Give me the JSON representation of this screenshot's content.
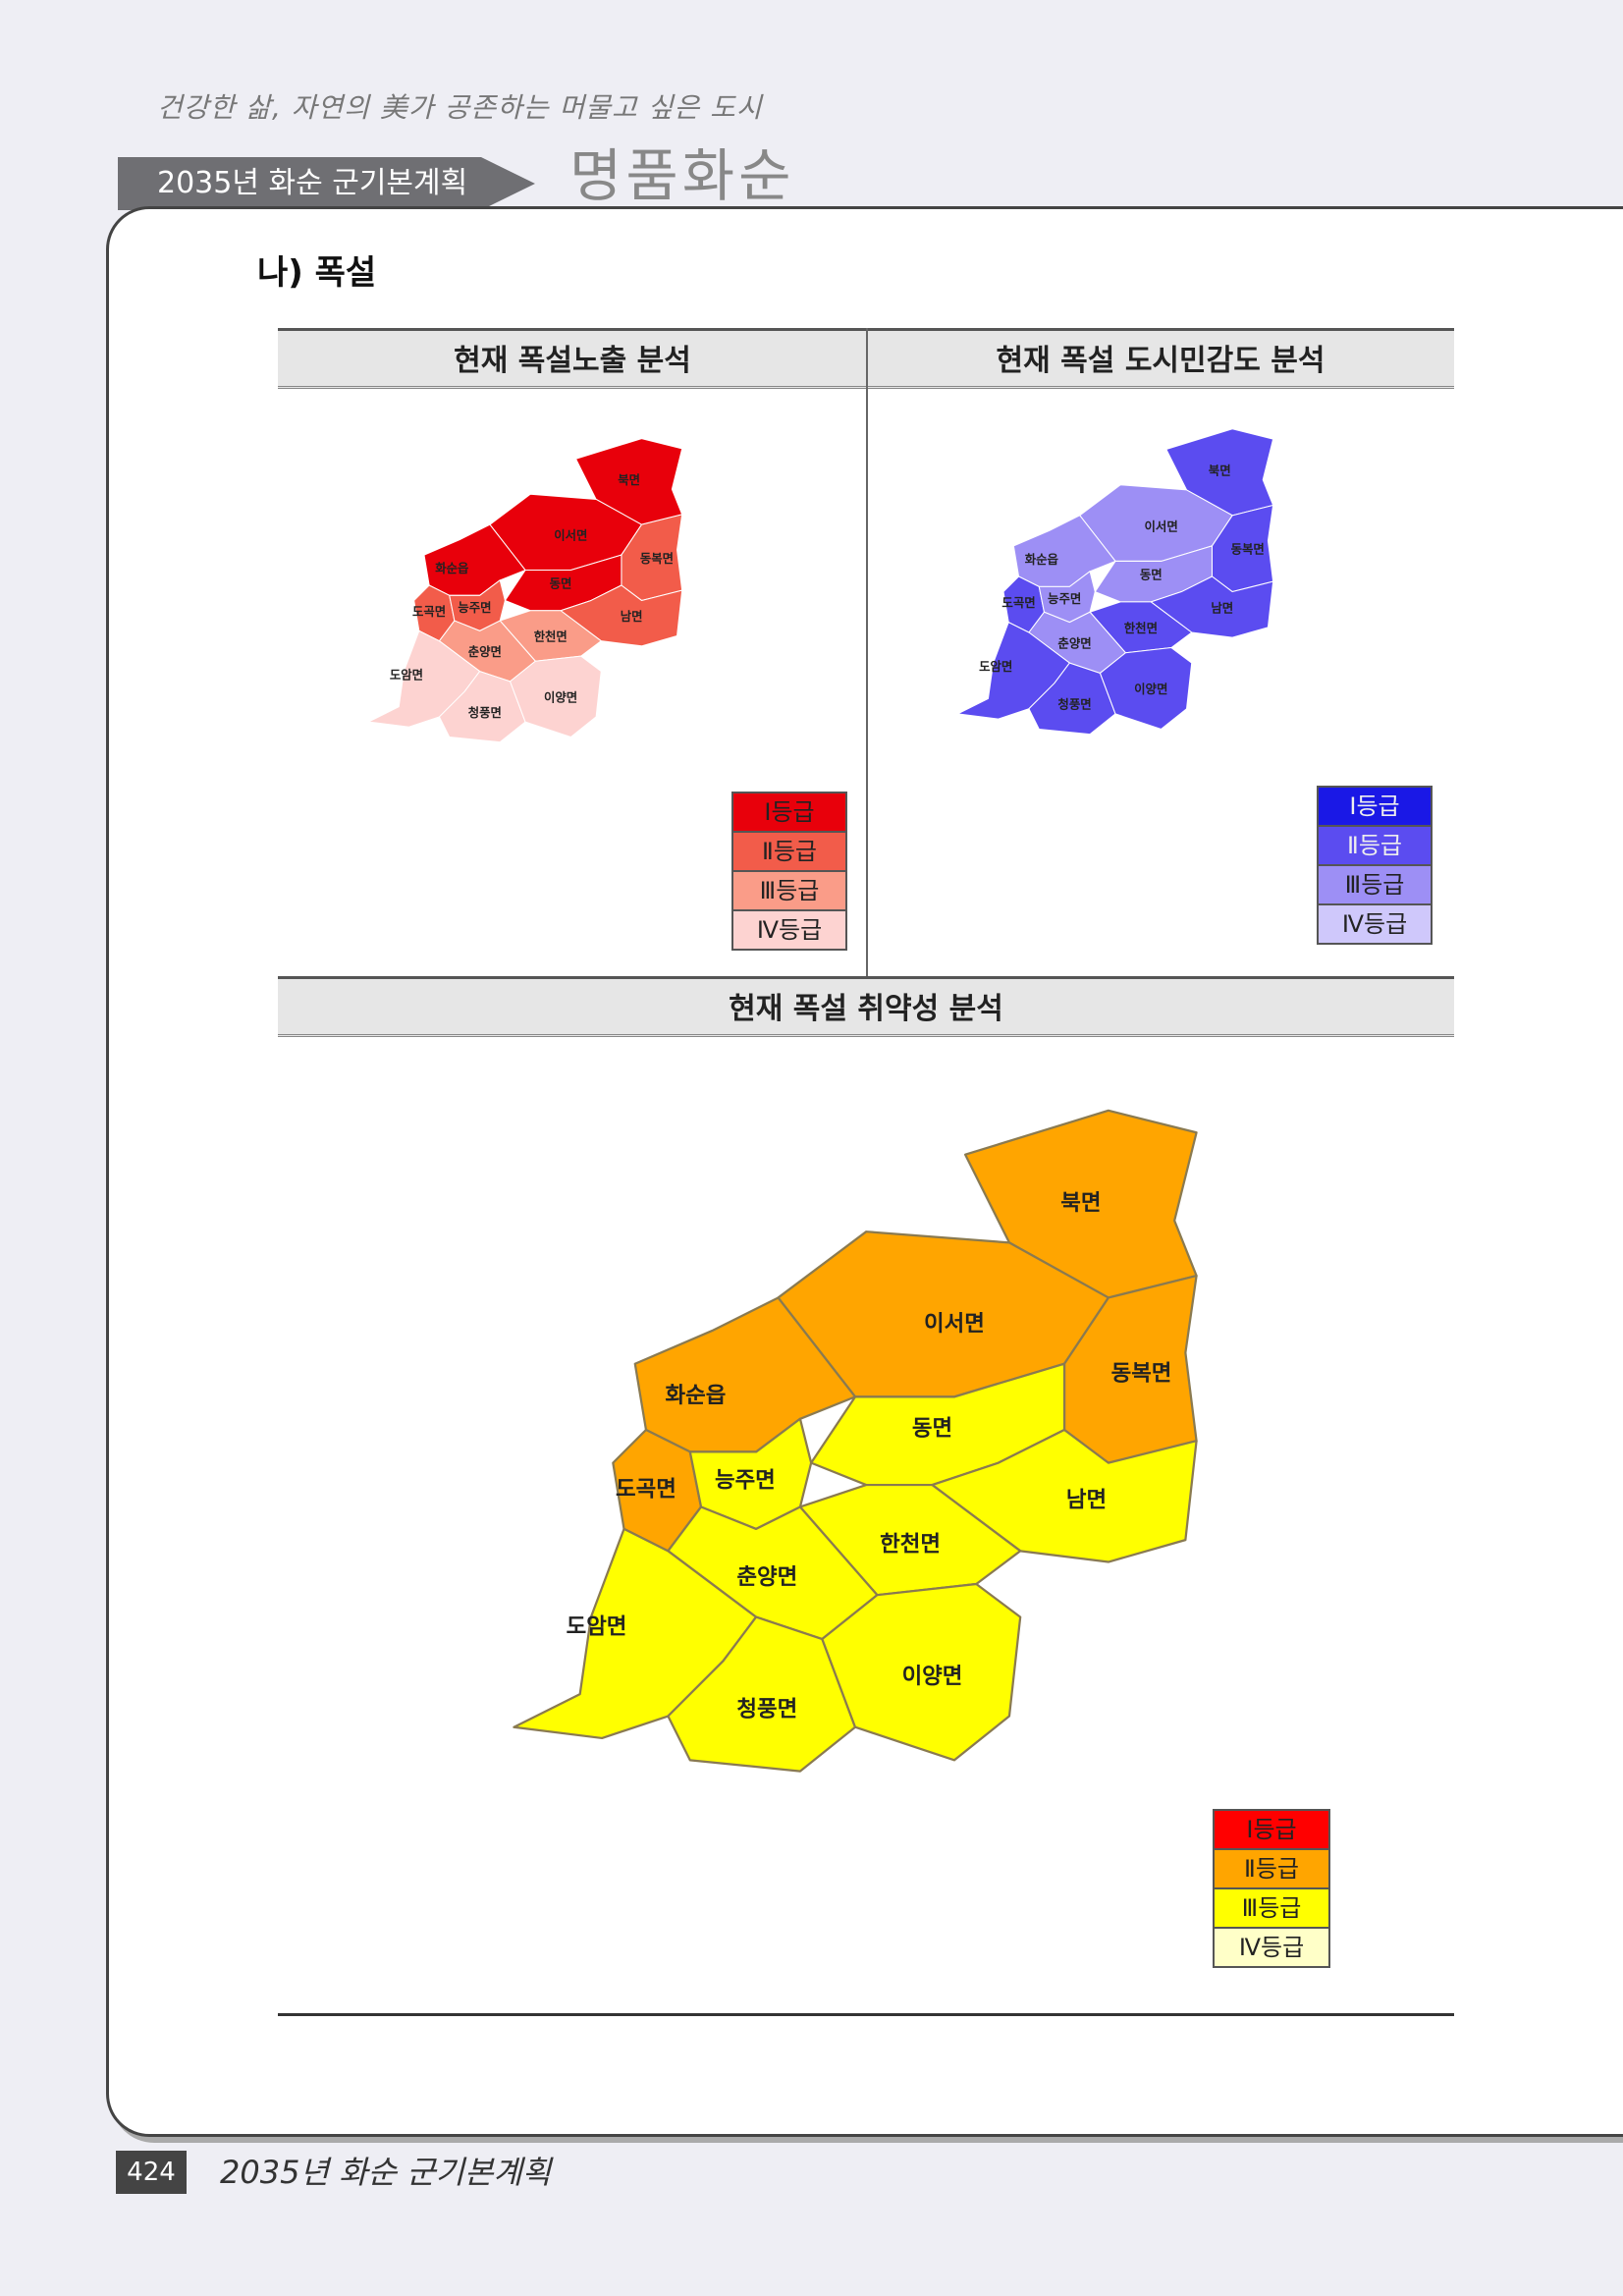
{
  "header": {
    "slogan": "건강한 삶, 자연의 美가 공존하는 머물고 싶은 도시",
    "plan_tab": "2035년 화순 군기본계획",
    "brand": "명품화순"
  },
  "section_title": "나) 폭설",
  "figures": {
    "exposure": {
      "title": "현재 폭설노출 분석",
      "colors": [
        "#e8000b",
        "#f25c4a",
        "#fa9c88",
        "#fdd3d1"
      ]
    },
    "sensitivity": {
      "title": "현재 폭설 도시민감도 분석",
      "colors": [
        "#1a18e6",
        "#5b4cf0",
        "#9d8ff5",
        "#cfc8fb"
      ]
    },
    "vulnerability": {
      "title": "현재 폭설 취약성 분석",
      "colors": [
        "#ff0000",
        "#ffa500",
        "#ffff00",
        "#ffffc8"
      ]
    }
  },
  "legend_labels": [
    "Ⅰ등급",
    "Ⅱ등급",
    "Ⅲ등급",
    "Ⅳ등급"
  ],
  "regions": {
    "buk": "북면",
    "iseo": "이서면",
    "dongbok": "동복면",
    "hwasun": "화순읍",
    "dong": "동면",
    "dogok": "도곡면",
    "neungju": "능주면",
    "nam": "남면",
    "hancheon": "한천면",
    "chunyang": "춘양면",
    "doam": "도암면",
    "cheongpung": "청풍면",
    "iyang": "이양면"
  },
  "grades": {
    "exposure": {
      "buk": 1,
      "iseo": 1,
      "hwasun": 1,
      "dong": 1,
      "dongbok": 2,
      "dogok": 2,
      "neungju": 2,
      "nam": 2,
      "hancheon": 3,
      "chunyang": 3,
      "doam": 4,
      "cheongpung": 4,
      "iyang": 4
    },
    "sensitivity": {
      "buk": 2,
      "iseo": 3,
      "dongbok": 2,
      "hwasun": 3,
      "dong": 3,
      "dogok": 2,
      "neungju": 3,
      "nam": 2,
      "hancheon": 2,
      "chunyang": 3,
      "doam": 2,
      "cheongpung": 2,
      "iyang": 2
    },
    "vulnerability": {
      "buk": 2,
      "iseo": 2,
      "dongbok": 2,
      "hwasun": 2,
      "dong": 3,
      "dogok": 2,
      "neungju": 3,
      "nam": 3,
      "hancheon": 3,
      "chunyang": 3,
      "doam": 3,
      "cheongpung": 3,
      "iyang": 3
    }
  },
  "footer": {
    "page_number": "424",
    "title": "2035년 화순 군기본계획"
  }
}
